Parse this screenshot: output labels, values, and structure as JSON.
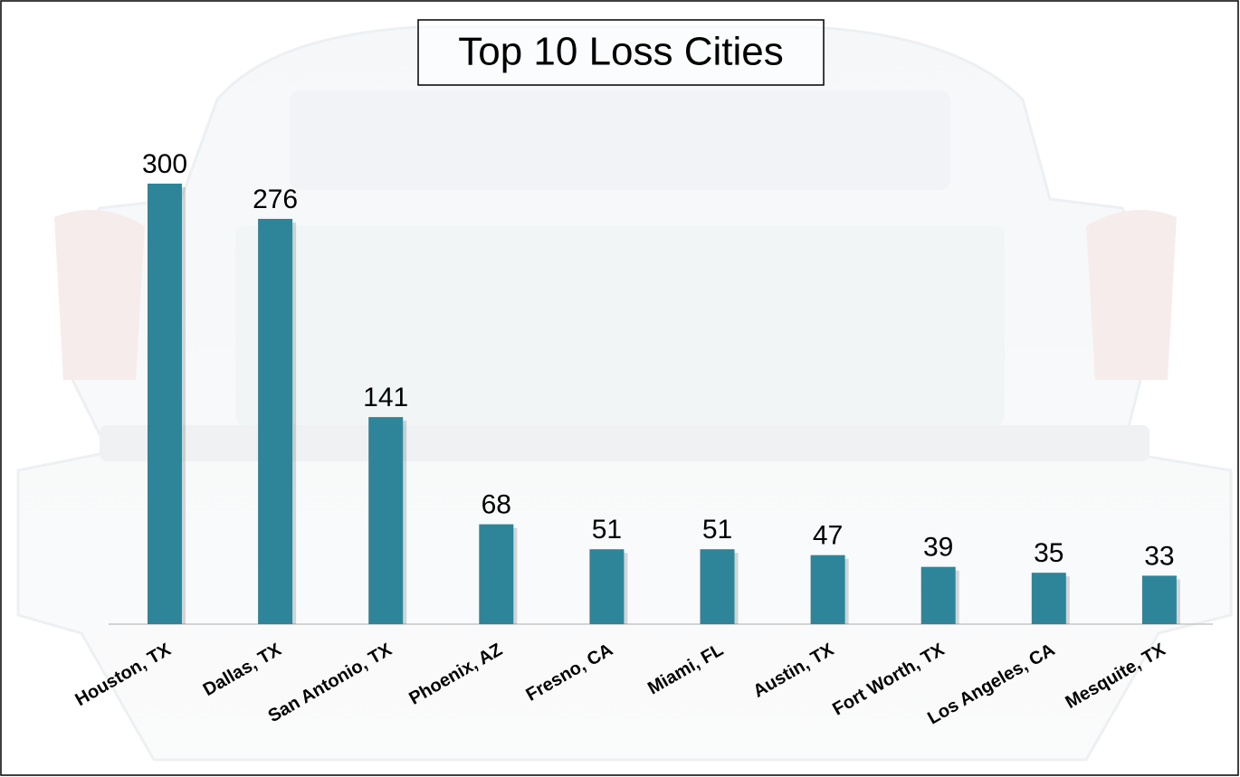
{
  "chart_data": {
    "type": "bar",
    "title": "Top 10 Loss Cities",
    "categories": [
      "Houston, TX",
      "Dallas, TX",
      "San Antonio, TX",
      "Phoenix, AZ",
      "Fresno, CA",
      "Miami, FL",
      "Austin, TX",
      "Fort Worth, TX",
      "Los Angeles, CA",
      "Mesquite, TX"
    ],
    "values": [
      300,
      276,
      141,
      68,
      51,
      51,
      47,
      39,
      35,
      33
    ],
    "color": "#2e8599"
  }
}
